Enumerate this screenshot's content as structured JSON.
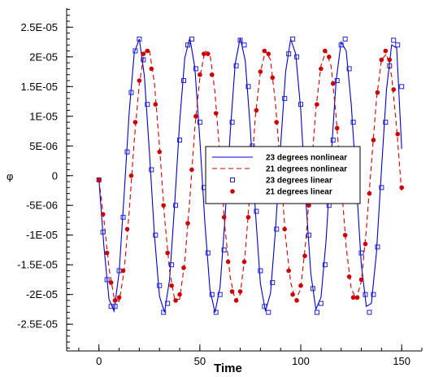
{
  "chart_data": {
    "type": "line",
    "title": "",
    "xlabel": "Time",
    "ylabel": "φ",
    "xlim": [
      -16,
      160
    ],
    "ylim": [
      -2.95e-05,
      2.82e-05
    ],
    "xticks": [
      0,
      50,
      100,
      150
    ],
    "xtick_labels": [
      "0",
      "50",
      "100",
      "150"
    ],
    "yticks": [
      2.5e-05,
      2e-05,
      1.5e-05,
      1e-05,
      5e-06,
      0,
      -5e-06,
      -1e-05,
      -1.5e-05,
      -2e-05,
      -2.5e-05
    ],
    "ytick_labels": [
      "2.5E-05",
      "2E-05",
      "1.5E-05",
      "1E-05",
      "5E-06",
      "0",
      "-5E-06",
      "-1E-05",
      "-1.5E-05",
      "-2E-05",
      "-2.5E-05"
    ],
    "grid": false,
    "legend_position": "center-right",
    "series": [
      {
        "name": "23 degrees nonlinear",
        "style": "line",
        "color": "#0000cc",
        "x": [
          0,
          2.5,
          5,
          7.5,
          10,
          12.5,
          15,
          17.5,
          20,
          22.5,
          25,
          27.5,
          30,
          32.5,
          35,
          37.5,
          40,
          42.5,
          45,
          47.5,
          50,
          52.5,
          55,
          57.5,
          60,
          62.5,
          65,
          67.5,
          70,
          72.5,
          75,
          77.5,
          80,
          82.5,
          85,
          87.5,
          90,
          92.5,
          95,
          97.5,
          100,
          102.5,
          105,
          107.5,
          110,
          112.5,
          115,
          117.5,
          120,
          122.5,
          125,
          127.5,
          130,
          132.5,
          135,
          137.5,
          140,
          142.5,
          145,
          147.5,
          150
        ],
        "y": [
          -7e-07,
          -1.2e-05,
          -2.08e-05,
          -2.28e-05,
          -1.62e-05,
          -3e-06,
          1.08e-05,
          2.07e-05,
          2.3e-05,
          1.68e-05,
          4e-06,
          -1e-05,
          -2.03e-05,
          -2.3e-05,
          -1.75e-05,
          -5e-06,
          9e-06,
          1.98e-05,
          2.32e-05,
          1.82e-05,
          6e-06,
          -8e-06,
          -1.92e-05,
          -2.3e-05,
          -1.88e-05,
          -7e-06,
          7e-06,
          1.88e-05,
          2.32e-05,
          1.94e-05,
          8e-06,
          -6e-06,
          -1.82e-05,
          -2.28e-05,
          -1.98e-05,
          -9e-06,
          5e-06,
          1.75e-05,
          2.3e-05,
          2.05e-05,
          1.1e-05,
          -4e-06,
          -1.65e-05,
          -2.25e-05,
          -2.05e-05,
          -1.1e-05,
          3e-06,
          1.6e-05,
          2.25e-05,
          2.1e-05,
          1.2e-05,
          -1e-06,
          -1.5e-05,
          -2.2e-05,
          -2.15e-05,
          -1.3e-05,
          1e-06,
          1.45e-05,
          2.2e-05,
          2.15e-05,
          4.5e-06
        ]
      },
      {
        "name": "21 degrees nonlinear",
        "style": "dashed",
        "color": "#cc0000",
        "x": [
          0,
          2.5,
          5,
          7.5,
          10,
          12.5,
          15,
          17.5,
          20,
          22.5,
          25,
          27.5,
          30,
          32.5,
          35,
          37.5,
          40,
          42.5,
          45,
          47.5,
          50,
          52.5,
          55,
          57.5,
          60,
          62.5,
          65,
          67.5,
          70,
          72.5,
          75,
          77.5,
          80,
          82.5,
          85,
          87.5,
          90,
          92.5,
          95,
          97.5,
          100,
          102.5,
          105,
          107.5,
          110,
          112.5,
          115,
          117.5,
          120,
          122.5,
          125,
          127.5,
          130,
          132.5,
          135,
          137.5,
          140,
          142.5,
          145,
          147.5,
          150
        ],
        "y": [
          -7e-07,
          -7.5e-06,
          -1.55e-05,
          -2.05e-05,
          -2.12e-05,
          -1.6e-05,
          -6e-06,
          6e-06,
          1.55e-05,
          2.08e-05,
          2.12e-05,
          1.55e-05,
          5e-06,
          -7e-06,
          -1.6e-05,
          -2.08e-05,
          -2.08e-05,
          -1.45e-05,
          -4e-06,
          8e-06,
          1.65e-05,
          2.1e-05,
          2.05e-05,
          1.4e-05,
          3e-06,
          -9e-06,
          -1.7e-05,
          -2.1e-05,
          -2e-05,
          -1.3e-05,
          -2e-06,
          1e-05,
          1.75e-05,
          2.1e-05,
          1.95e-05,
          1.2e-05,
          1e-06,
          -1.05e-05,
          -1.8e-05,
          -2.1e-05,
          -1.9e-05,
          -1.1e-05,
          0,
          1.12e-05,
          1.85e-05,
          2.1e-05,
          1.85e-05,
          1e-05,
          -1e-06,
          -1.2e-05,
          -1.9e-05,
          -2.08e-05,
          -1.78e-05,
          -9e-06,
          2e-06,
          1.28e-05,
          1.95e-05,
          2.05e-05,
          1.68e-05,
          8e-06,
          -3e-06
        ]
      },
      {
        "name": "23 degrees linear",
        "style": "markers",
        "marker": "square",
        "color": "#2222cc",
        "x": [
          0,
          2,
          4,
          6,
          8,
          10,
          12,
          14,
          16,
          18,
          20,
          22,
          24,
          26,
          28,
          30,
          32,
          34,
          36,
          38,
          40,
          42,
          44,
          46,
          48,
          50,
          52,
          54,
          56,
          58,
          60,
          62,
          64,
          66,
          68,
          70,
          72,
          74,
          76,
          78,
          80,
          82,
          84,
          86,
          88,
          90,
          92,
          94,
          96,
          98,
          100,
          102,
          104,
          106,
          108,
          110,
          112,
          114,
          116,
          118,
          120,
          122,
          124,
          126,
          128,
          130,
          132,
          134,
          136,
          138,
          140,
          142,
          144,
          146,
          148,
          150
        ],
        "y": [
          -7e-07,
          -9.5e-06,
          -1.75e-05,
          -2.2e-05,
          -2.2e-05,
          -1.6e-05,
          -7e-06,
          4e-06,
          1.4e-05,
          2.1e-05,
          2.3e-05,
          1.95e-05,
          1.2e-05,
          1e-06,
          -1e-05,
          -1.85e-05,
          -2.3e-05,
          -2.15e-05,
          -1.5e-05,
          -5e-06,
          6e-06,
          1.6e-05,
          2.2e-05,
          2.3e-05,
          1.8e-05,
          9e-06,
          -2e-06,
          -1.3e-05,
          -2e-05,
          -2.3e-05,
          -2e-05,
          -1.25e-05,
          -2e-06,
          9e-06,
          1.85e-05,
          2.28e-05,
          2.2e-05,
          1.5e-05,
          5e-06,
          -6e-06,
          -1.6e-05,
          -2.2e-05,
          -2.3e-05,
          -1.8e-05,
          -9e-06,
          2e-06,
          1.3e-05,
          2.05e-05,
          2.3e-05,
          2e-05,
          1.2e-05,
          1e-06,
          -1e-05,
          -1.9e-05,
          -2.3e-05,
          -2.15e-05,
          -1.5e-05,
          -5e-06,
          6e-06,
          1.6e-05,
          2.2e-05,
          2.3e-05,
          1.8e-05,
          9e-06,
          -2e-06,
          -1.3e-05,
          -2e-05,
          -2.3e-05,
          -2e-05,
          -1.2e-05,
          -2e-06,
          9e-06,
          1.85e-05,
          2.28e-05,
          2.2e-05,
          1.5e-05
        ]
      },
      {
        "name": "21 degrees linear",
        "style": "markers",
        "marker": "circle",
        "color": "#cc0000",
        "x": [
          0,
          2,
          4,
          6,
          8,
          10,
          12,
          14,
          16,
          18,
          20,
          22,
          24,
          26,
          28,
          30,
          32,
          34,
          36,
          38,
          40,
          42,
          44,
          46,
          48,
          50,
          52,
          54,
          56,
          58,
          60,
          62,
          64,
          66,
          68,
          70,
          72,
          74,
          76,
          78,
          80,
          82,
          84,
          86,
          88,
          90,
          92,
          94,
          96,
          98,
          100,
          102,
          104,
          106,
          108,
          110,
          112,
          114,
          116,
          118,
          120,
          122,
          124,
          126,
          128,
          130,
          132,
          134,
          136,
          138,
          140,
          142,
          144,
          146,
          148,
          150
        ],
        "y": [
          -7e-07,
          -6.5e-06,
          -1.3e-05,
          -1.8e-05,
          -2.1e-05,
          -2.05e-05,
          -1.6e-05,
          -9e-06,
          0,
          9e-06,
          1.6e-05,
          2.05e-05,
          2.1e-05,
          1.8e-05,
          1.2e-05,
          4e-06,
          -5e-06,
          -1.3e-05,
          -1.85e-05,
          -2.1e-05,
          -2e-05,
          -1.55e-05,
          -8e-06,
          1e-06,
          1e-05,
          1.7e-05,
          2.05e-05,
          2.05e-05,
          1.7e-05,
          1.05e-05,
          2e-06,
          -7e-06,
          -1.45e-05,
          -1.95e-05,
          -2.1e-05,
          -1.95e-05,
          -1.45e-05,
          -7e-06,
          2e-06,
          1.1e-05,
          1.75e-05,
          2.1e-05,
          2.05e-05,
          1.65e-05,
          9e-06,
          0,
          -9e-06,
          -1.6e-05,
          -2e-05,
          -2.1e-05,
          -1.85e-05,
          -1.35e-05,
          -5e-06,
          4e-06,
          1.2e-05,
          1.8e-05,
          2.1e-05,
          2e-05,
          1.55e-05,
          8e-06,
          -1e-06,
          -1e-05,
          -1.7e-05,
          -2.05e-05,
          -2.05e-05,
          -1.75e-05,
          -1.15e-05,
          -3e-06,
          6e-06,
          1.4e-05,
          1.95e-05,
          2.1e-05,
          1.95e-05,
          1.45e-05,
          7e-06,
          -2e-06
        ]
      }
    ]
  }
}
